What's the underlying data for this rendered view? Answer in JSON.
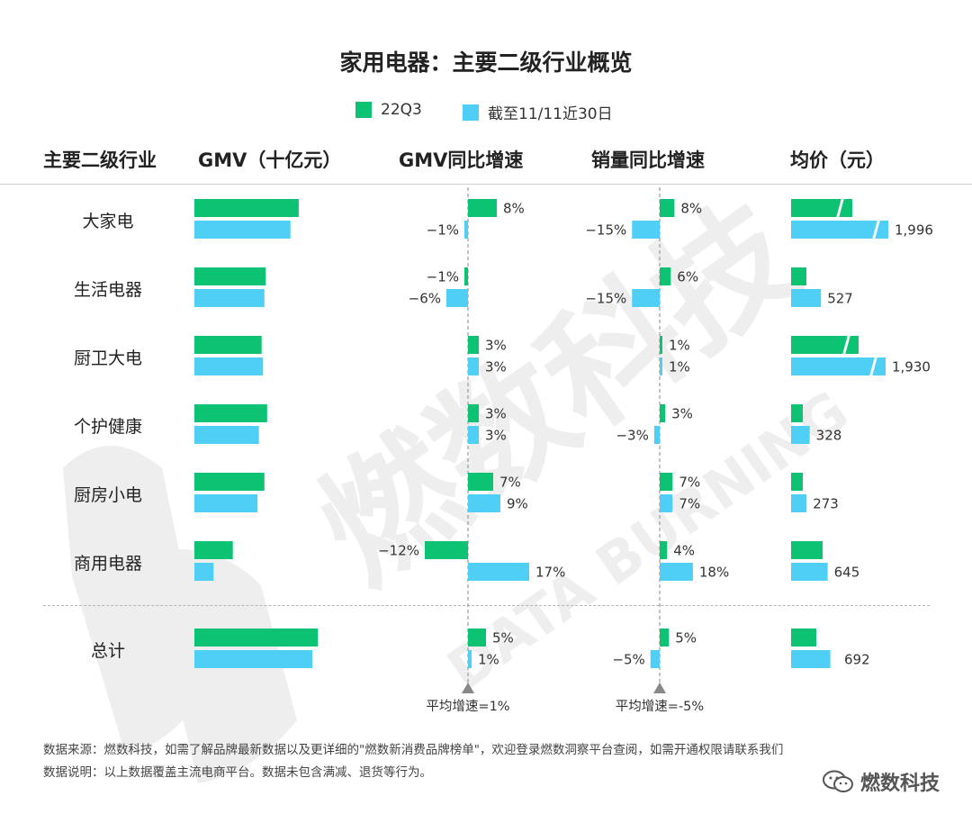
{
  "title": "家用电器：主要二级行业概览",
  "legend": [
    {
      "label": "22Q3",
      "color": "#0DC373"
    },
    {
      "label": "截至11/11近30日",
      "color": "#4FCFF5"
    }
  ],
  "headers": {
    "category": "主要二级行业",
    "gmv": "GMV（十亿元）",
    "gmv_growth": "GMV同比增速",
    "volume_growth": "销量同比增速",
    "price": "均价（元）"
  },
  "avg_labels": {
    "gmv_growth": "平均增速=1%",
    "volume_growth": "平均增速=-5%"
  },
  "notes": {
    "source": "数据来源：燃数科技，如需了解品牌最新数据以及更详细的\"燃数新消费品牌榜单\"，欢迎登录燃数洞察平台查阅，如需开通权限请联系我们",
    "desc": "数据说明：以上数据覆盖主流电商平台。数据未包含满减、退货等行为。"
  },
  "brand": "燃数科技",
  "colors": {
    "q3": "#0DC373",
    "recent": "#4FCFF5",
    "grid": "#999999"
  },
  "chart_data": {
    "type": "bar",
    "categories": [
      "大家电",
      "生活电器",
      "厨卫大电",
      "个护健康",
      "厨房小电",
      "商用电器",
      "总计"
    ],
    "panels": [
      {
        "name": "GMV（十亿元）",
        "series": [
          {
            "name": "22Q3",
            "values": [
              38,
              26,
              24.5,
              26.5,
              25.5,
              14,
              45
            ]
          },
          {
            "name": "截至11/11近30日",
            "values": [
              35,
              25.5,
              25,
              23.5,
              23,
              7,
              43
            ]
          }
        ]
      },
      {
        "name": "GMV同比增速",
        "series": [
          {
            "name": "22Q3",
            "values": [
              8,
              -1,
              3,
              3,
              7,
              -12,
              5
            ],
            "labels": [
              "8%",
              "−1%",
              "3%",
              "3%",
              "7%",
              "−12%",
              "5%"
            ]
          },
          {
            "name": "截至11/11近30日",
            "values": [
              -1,
              -6,
              3,
              3,
              9,
              17,
              1
            ],
            "labels": [
              "−1%",
              "−6%",
              "3%",
              "3%",
              "9%",
              "17%",
              "1%"
            ]
          }
        ],
        "reference": 1
      },
      {
        "name": "销量同比增速",
        "series": [
          {
            "name": "22Q3",
            "values": [
              8,
              6,
              1,
              3,
              7,
              4,
              5
            ],
            "labels": [
              "8%",
              "6%",
              "1%",
              "3%",
              "7%",
              "4%",
              "5%"
            ]
          },
          {
            "name": "截至11/11近30日",
            "values": [
              -15,
              -15,
              1,
              -3,
              7,
              18,
              -5
            ],
            "labels": [
              "−15%",
              "−15%",
              "1%",
              "−3%",
              "7%",
              "18%",
              "−5%"
            ]
          }
        ],
        "reference": -5
      },
      {
        "name": "均价（元）",
        "series": [
          {
            "name": "22Q3",
            "values": [
              1400,
              200,
              1500,
              150,
              150,
              400,
              320
            ],
            "labels": [
              "",
              "",
              "",
              "",
              "",
              "",
              ""
            ]
          },
          {
            "name": "截至11/11近30日",
            "values": [
              1996,
              527,
              1930,
              328,
              273,
              645,
              692
            ],
            "labels": [
              "1,996",
              "527",
              "1,930",
              "328",
              "273",
              "645",
              "692"
            ]
          }
        ]
      }
    ]
  }
}
